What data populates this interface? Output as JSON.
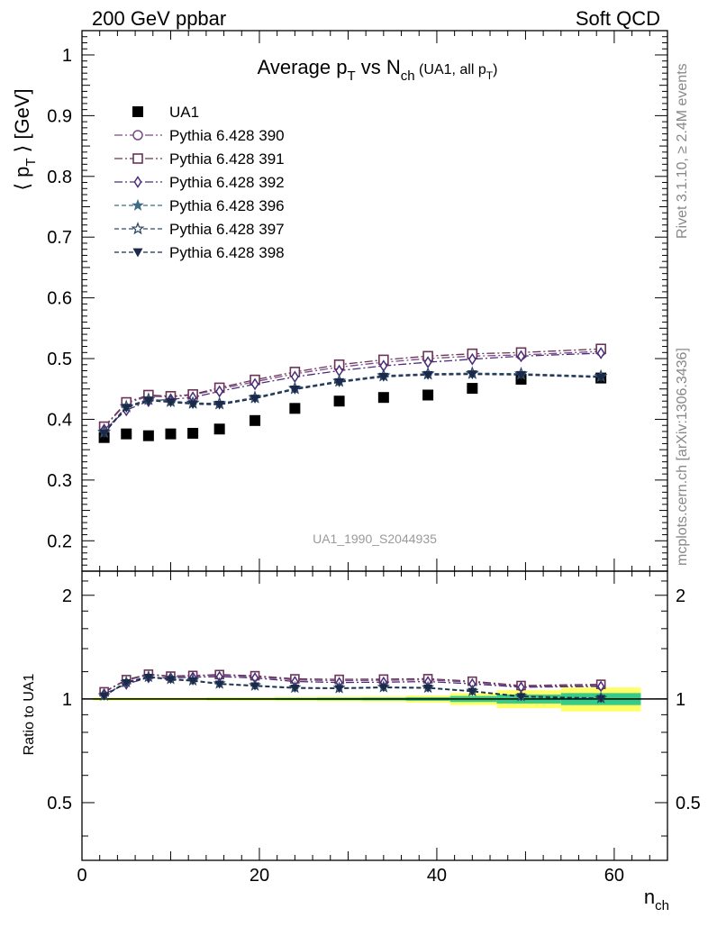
{
  "header": {
    "left": "200 GeV ppbar",
    "right": "Soft QCD"
  },
  "side_labels": {
    "rivet": "Rivet 3.1.10, ≥ 2.4M events",
    "mcplots": "mcplots.cern.ch [arXiv:1306.3436]"
  },
  "chart_data": [
    {
      "type": "scatter",
      "title_parts": {
        "a": "Average p",
        "a_sub": "T",
        "b": " vs N",
        "b_sub": "ch",
        "c": " (UA1, all p",
        "c_sub": "T",
        "d": ")"
      },
      "ylabel": "⟨ p_T ⟩ [GeV]",
      "ylabel_parts": {
        "l": "⟨ p",
        "sub": "T",
        "r": " ⟩ [GeV]"
      },
      "watermark": "UA1_1990_S2044935",
      "xlim": [
        0,
        66
      ],
      "ylim": [
        0.15,
        1.04
      ],
      "yticks": [
        0.2,
        0.3,
        0.4,
        0.5,
        0.6,
        0.7,
        0.8,
        0.9,
        1
      ],
      "ytick_labels": [
        "0.2",
        "0.3",
        "0.4",
        "0.5",
        "0.6",
        "0.7",
        "0.8",
        "0.9",
        "1"
      ],
      "x": [
        2.5,
        5,
        7.5,
        10,
        12.5,
        15.5,
        19.5,
        24,
        29,
        34,
        39,
        44,
        49.5,
        58.5
      ],
      "series": [
        {
          "name": "UA1",
          "marker": "square-filled",
          "color": "#000000",
          "line": "none",
          "values": [
            0.37,
            0.376,
            0.373,
            0.376,
            0.377,
            0.384,
            0.398,
            0.418,
            0.43,
            0.436,
            0.44,
            0.451,
            0.466,
            0.468
          ]
        },
        {
          "name": "Pythia 6.428 390",
          "marker": "circle-open",
          "color": "#7a4a86",
          "line": "dashdot",
          "values": [
            0.387,
            0.426,
            0.438,
            0.437,
            0.44,
            0.45,
            0.462,
            0.475,
            0.486,
            0.494,
            0.5,
            0.504,
            0.506,
            0.512
          ]
        },
        {
          "name": "Pythia 6.428 391",
          "marker": "square-open",
          "color": "#6b3357",
          "line": "dashdot",
          "values": [
            0.388,
            0.428,
            0.44,
            0.438,
            0.441,
            0.452,
            0.465,
            0.478,
            0.49,
            0.498,
            0.504,
            0.508,
            0.51,
            0.516
          ]
        },
        {
          "name": "Pythia 6.428 392",
          "marker": "diamond-open",
          "color": "#4a2d7a",
          "line": "dashdot",
          "values": [
            0.383,
            0.415,
            0.43,
            0.433,
            0.436,
            0.446,
            0.458,
            0.47,
            0.48,
            0.488,
            0.494,
            0.499,
            0.504,
            0.509
          ]
        },
        {
          "name": "Pythia 6.428 396",
          "marker": "star-filled",
          "color": "#3f6c85",
          "line": "dashed",
          "values": [
            0.378,
            0.42,
            0.432,
            0.429,
            0.426,
            0.425,
            0.435,
            0.45,
            0.462,
            0.471,
            0.474,
            0.475,
            0.474,
            0.47
          ]
        },
        {
          "name": "Pythia 6.428 397",
          "marker": "star-open",
          "color": "#2e4a66",
          "line": "dashed",
          "values": [
            0.379,
            0.421,
            0.433,
            0.43,
            0.427,
            0.426,
            0.436,
            0.451,
            0.463,
            0.472,
            0.475,
            0.476,
            0.475,
            0.471
          ]
        },
        {
          "name": "Pythia 6.428 398",
          "marker": "triangle-down-filled",
          "color": "#1b2a4a",
          "line": "dashed",
          "values": [
            0.377,
            0.419,
            0.431,
            0.428,
            0.425,
            0.424,
            0.434,
            0.449,
            0.461,
            0.47,
            0.473,
            0.474,
            0.473,
            0.469
          ]
        }
      ]
    },
    {
      "type": "scatter",
      "ylabel": "Ratio to UA1",
      "xlabel": "n_ch",
      "xlabel_parts": {
        "main": "n",
        "sub": "ch"
      },
      "xlim": [
        0,
        66
      ],
      "xticks": [
        0,
        20,
        40,
        60
      ],
      "xtick_labels": [
        "0",
        "20",
        "40",
        "60"
      ],
      "ylog": true,
      "ylim": [
        0.34,
        2.35
      ],
      "yticks": [
        0.5,
        1,
        2
      ],
      "ytick_labels": [
        "0.5",
        "1",
        "2"
      ],
      "reference": 1,
      "band_color_inner": "#33cc88",
      "band_color_outer": "#ffff66",
      "x": [
        2.5,
        5,
        7.5,
        10,
        12.5,
        15.5,
        19.5,
        24,
        29,
        34,
        39,
        44,
        49.5,
        58.5
      ],
      "band_half_width": [
        0.005,
        0.005,
        0.005,
        0.005,
        0.005,
        0.006,
        0.006,
        0.007,
        0.008,
        0.009,
        0.012,
        0.02,
        0.03,
        0.04
      ],
      "series": [
        {
          "name": "Pythia 6.428 390",
          "values": [
            1.046,
            1.133,
            1.174,
            1.162,
            1.167,
            1.172,
            1.161,
            1.136,
            1.13,
            1.133,
            1.136,
            1.118,
            1.086,
            1.094
          ]
        },
        {
          "name": "Pythia 6.428 391",
          "values": [
            1.049,
            1.138,
            1.18,
            1.165,
            1.17,
            1.177,
            1.168,
            1.144,
            1.14,
            1.142,
            1.145,
            1.126,
            1.094,
            1.103
          ]
        },
        {
          "name": "Pythia 6.428 392",
          "values": [
            1.035,
            1.104,
            1.153,
            1.152,
            1.157,
            1.161,
            1.151,
            1.124,
            1.116,
            1.119,
            1.123,
            1.106,
            1.082,
            1.088
          ]
        },
        {
          "name": "Pythia 6.428 396",
          "values": [
            1.022,
            1.117,
            1.158,
            1.141,
            1.13,
            1.107,
            1.093,
            1.077,
            1.074,
            1.08,
            1.077,
            1.053,
            1.017,
            1.004
          ]
        },
        {
          "name": "Pythia 6.428 397",
          "values": [
            1.024,
            1.12,
            1.161,
            1.144,
            1.133,
            1.109,
            1.095,
            1.079,
            1.077,
            1.083,
            1.08,
            1.055,
            1.019,
            1.006
          ]
        },
        {
          "name": "Pythia 6.428 398",
          "values": [
            1.019,
            1.114,
            1.155,
            1.138,
            1.127,
            1.104,
            1.09,
            1.074,
            1.072,
            1.078,
            1.075,
            1.051,
            1.015,
            1.002
          ]
        }
      ]
    }
  ]
}
